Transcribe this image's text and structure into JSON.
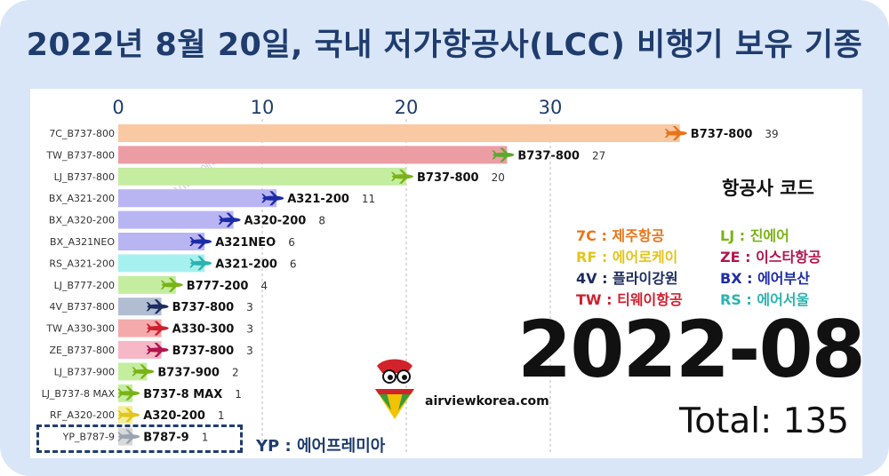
{
  "title": "2022년 8월 20일, 국내 저가항공사(LCC) 비행기 보유 기종",
  "legend": {
    "title": "항공사 코드",
    "items": [
      {
        "text": "7C : 제주항공",
        "color": "#e8751a"
      },
      {
        "text": "LJ : 진에어",
        "color": "#7ab317"
      },
      {
        "text": "RF : 에어로케이",
        "color": "#e3c51c"
      },
      {
        "text": "ZE : 이스타항공",
        "color": "#b0154e"
      },
      {
        "text": "4V : 플라이강원",
        "color": "#1c2c5e"
      },
      {
        "text": "BX : 에어부산",
        "color": "#1c2ca8"
      },
      {
        "text": "TW : 티웨이항공",
        "color": "#cf1f2e"
      },
      {
        "text": "RS : 에어서울",
        "color": "#2bb3b0"
      }
    ]
  },
  "date_label": "2022-08",
  "total": {
    "label": "Total:",
    "value": "135"
  },
  "brand": {
    "site": "airviewkorea.com",
    "watermark": "AIRVIEW 에어뷰"
  },
  "yp_note": "YP : 에어프레미아",
  "chart_data": {
    "type": "bar",
    "orientation": "horizontal",
    "xlim": [
      0,
      39
    ],
    "xticks": [
      0,
      10,
      20,
      30
    ],
    "categories": [
      "7C_B737-800",
      "TW_B737-800",
      "LJ_B737-800",
      "BX_A321-200",
      "BX_A320-200",
      "BX_A321NEO",
      "RS_A321-200",
      "LJ_B777-200",
      "4V_B737-800",
      "TW_A330-300",
      "ZE_B737-800",
      "LJ_B737-900",
      "LJ_B737-8 MAX",
      "RF_A320-200",
      "YP_B787-9"
    ],
    "models": [
      "B737-800",
      "B737-800",
      "B737-800",
      "A321-200",
      "A320-200",
      "A321NEO",
      "A321-200",
      "B777-200",
      "B737-800",
      "A330-300",
      "B737-800",
      "B737-900",
      "B737-8 MAX",
      "A320-200",
      "B787-9"
    ],
    "values": [
      39,
      27,
      20,
      11,
      8,
      6,
      6,
      4,
      3,
      3,
      3,
      2,
      1,
      1,
      1
    ],
    "bar_colors": [
      "#f9c9a4",
      "#ec9da4",
      "#c4eda0",
      "#b9b4f2",
      "#b9b4f2",
      "#b9b4f2",
      "#a6f1ef",
      "#c4eda0",
      "#b1bed2",
      "#f4aaaa",
      "#f6b8c6",
      "#c4eda0",
      "#c4eda0",
      "#f1ef9e",
      "#d9d9d9"
    ],
    "plane_colors": [
      "#e8751a",
      "#5caa2c",
      "#7ab317",
      "#1c2ca8",
      "#1c2ca8",
      "#1c2ca8",
      "#2bb3b0",
      "#7ab317",
      "#1c2c5e",
      "#cf1f2e",
      "#b0154e",
      "#7ab317",
      "#7ab317",
      "#e3c51c",
      "#9aa4b1"
    ],
    "grid": true
  }
}
